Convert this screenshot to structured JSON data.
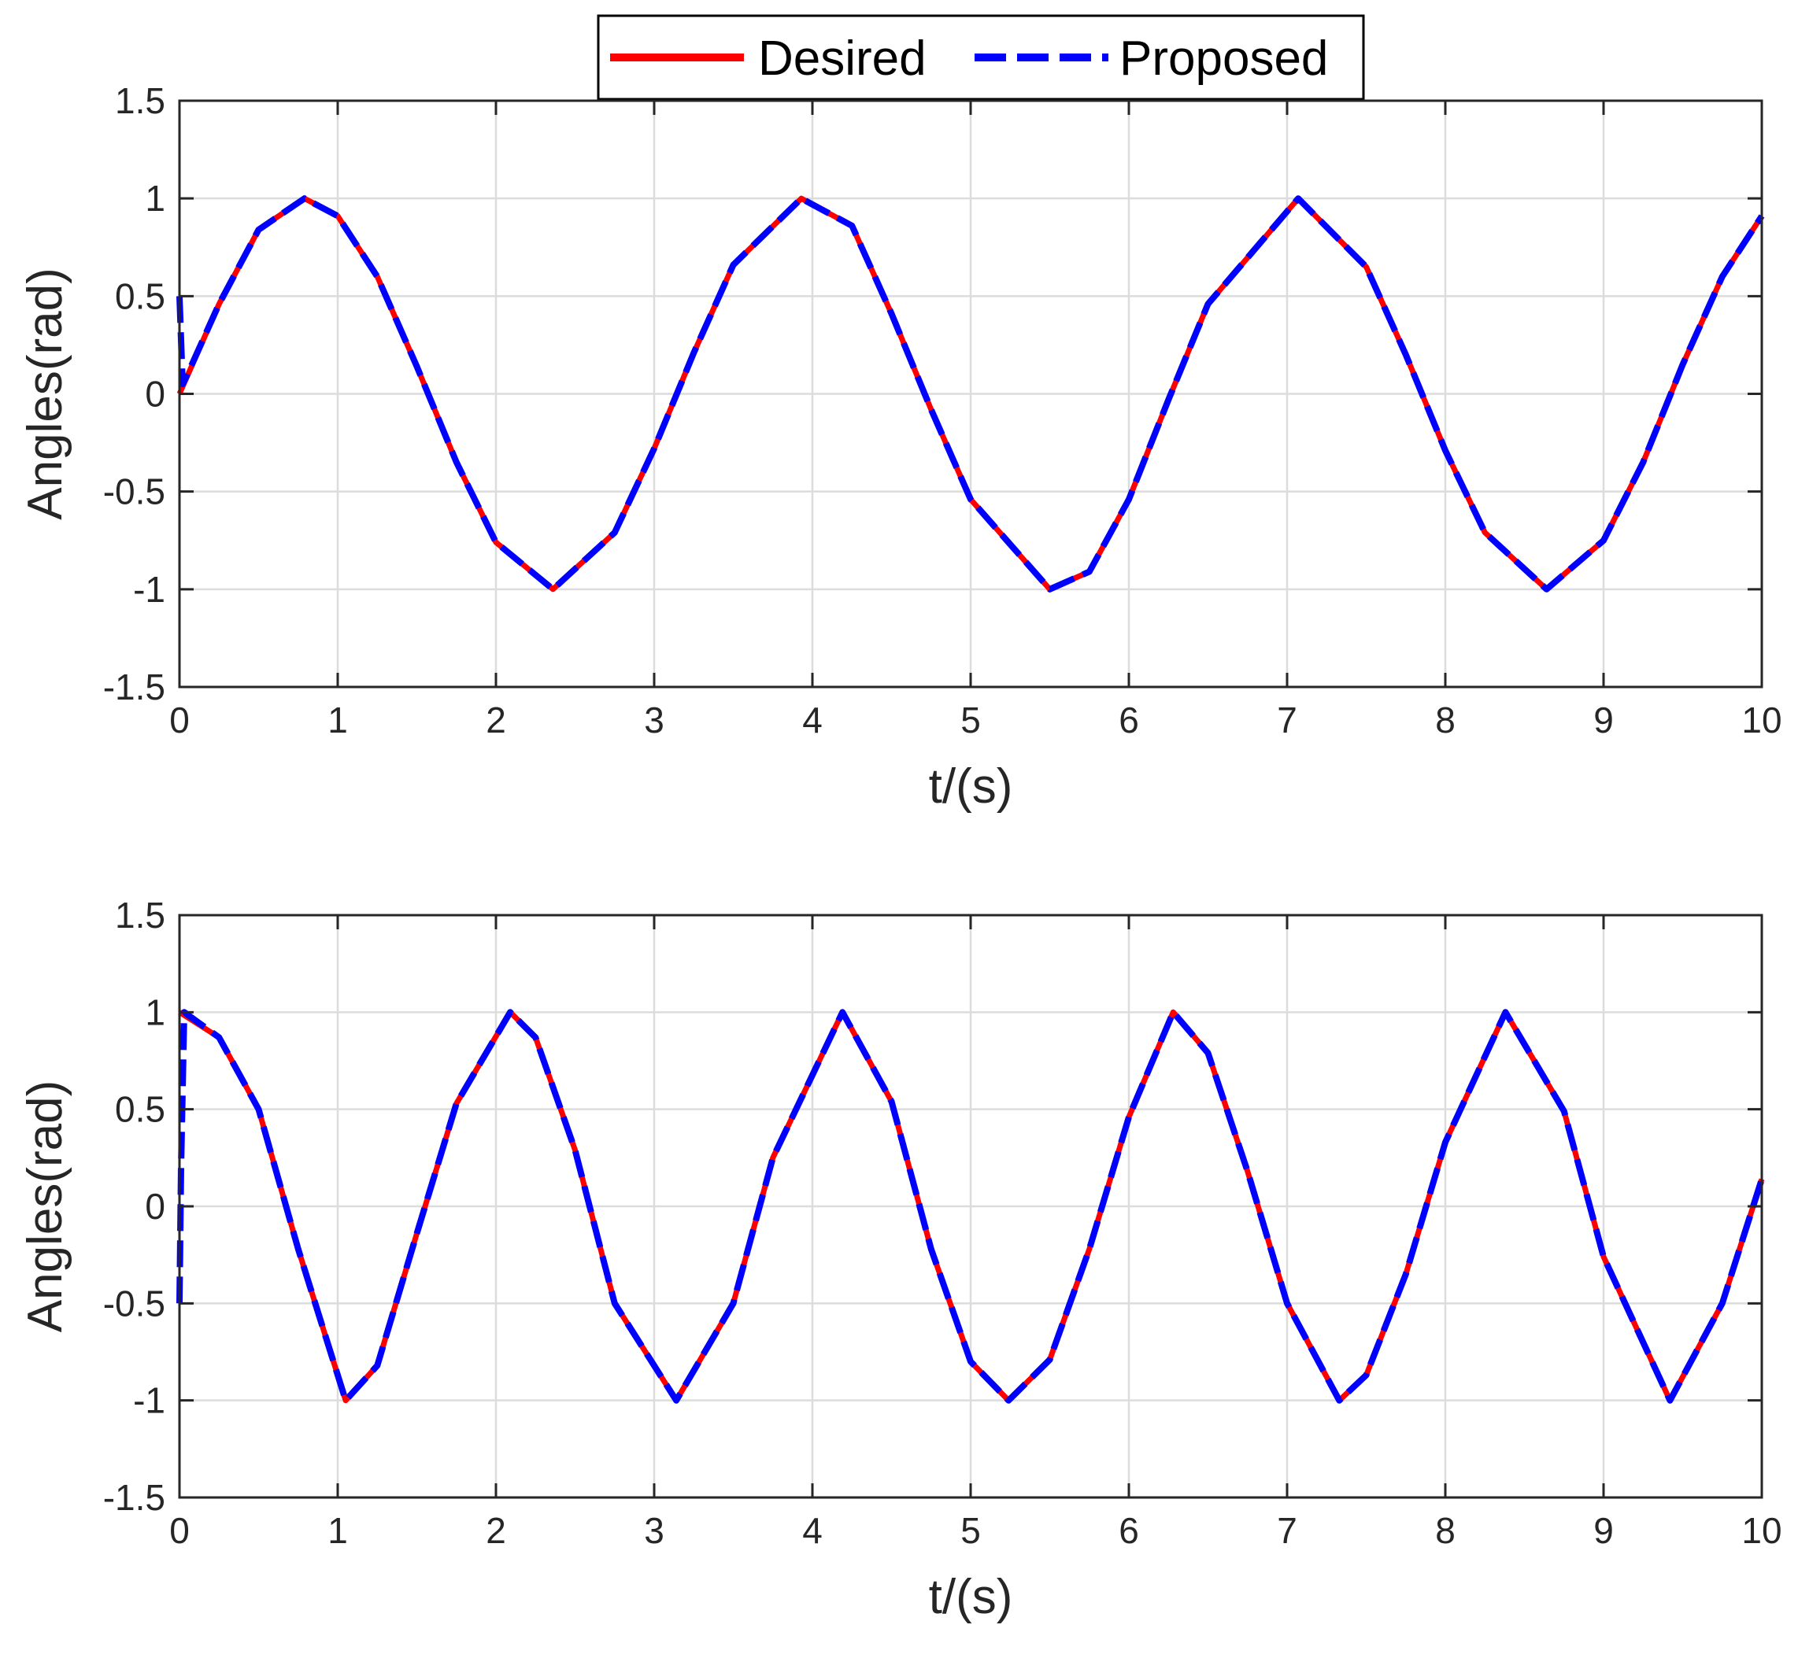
{
  "legend": {
    "entries": [
      {
        "label": "Desired",
        "color": "#ff0000",
        "style": "solid"
      },
      {
        "label": "Proposed",
        "color": "#0000ff",
        "style": "dashed"
      }
    ],
    "placement": "top-center, outside above top plot"
  },
  "chart_data": [
    {
      "type": "line",
      "xlabel": "t/(s)",
      "ylabel": "Angles(rad)",
      "xlim": [
        0,
        10
      ],
      "ylim": [
        -1.5,
        1.5
      ],
      "xticks": [
        "0",
        "1",
        "2",
        "3",
        "4",
        "5",
        "6",
        "7",
        "8",
        "9",
        "10"
      ],
      "yticks": [
        "1.5",
        "1",
        "0.5",
        "0",
        "-0.5",
        "-1",
        "-1.5"
      ],
      "grid": true,
      "series": [
        {
          "name": "Desired",
          "color": "#ff0000",
          "x": [
            0,
            0.25,
            0.5,
            0.79,
            1,
            1.25,
            1.5,
            1.75,
            2,
            2.36,
            2.75,
            3,
            3.25,
            3.5,
            3.93,
            4.25,
            4.5,
            4.75,
            5,
            5.5,
            5.75,
            6,
            6.25,
            6.5,
            7.07,
            7.5,
            7.75,
            8,
            8.25,
            8.64,
            9,
            9.25,
            9.5,
            9.75,
            10
          ],
          "y": [
            0,
            0.46,
            0.84,
            1.0,
            0.91,
            0.6,
            0.14,
            -0.35,
            -0.76,
            -1.0,
            -0.71,
            -0.28,
            0.21,
            0.66,
            1.0,
            0.86,
            0.41,
            -0.08,
            -0.54,
            -1.0,
            -0.91,
            -0.54,
            -0.03,
            0.46,
            1.0,
            0.65,
            0.2,
            -0.29,
            -0.71,
            -1.0,
            -0.75,
            -0.35,
            0.15,
            0.6,
            0.91
          ]
        },
        {
          "name": "Proposed",
          "color": "#0000ff",
          "x": [
            0,
            0.02,
            0.05,
            0.25,
            0.5,
            0.79,
            1,
            1.25,
            1.5,
            1.75,
            2,
            2.36,
            2.75,
            3,
            3.25,
            3.5,
            3.93,
            4.25,
            4.5,
            4.75,
            5,
            5.5,
            5.75,
            6,
            6.25,
            6.5,
            7.07,
            7.5,
            7.75,
            8,
            8.25,
            8.64,
            9,
            9.25,
            9.5,
            9.75,
            10
          ],
          "y": [
            0.5,
            0.05,
            0.1,
            0.46,
            0.84,
            1.0,
            0.91,
            0.6,
            0.14,
            -0.35,
            -0.76,
            -1.0,
            -0.71,
            -0.28,
            0.21,
            0.66,
            1.0,
            0.86,
            0.41,
            -0.08,
            -0.54,
            -1.0,
            -0.91,
            -0.54,
            -0.03,
            0.46,
            1.0,
            0.65,
            0.2,
            -0.29,
            -0.71,
            -1.0,
            -0.75,
            -0.35,
            0.15,
            0.6,
            0.91
          ]
        }
      ]
    },
    {
      "type": "line",
      "xlabel": "t/(s)",
      "ylabel": "Angles(rad)",
      "xlim": [
        0,
        10
      ],
      "ylim": [
        -1.5,
        1.5
      ],
      "xticks": [
        "0",
        "1",
        "2",
        "3",
        "4",
        "5",
        "6",
        "7",
        "8",
        "9",
        "10"
      ],
      "yticks": [
        "1.5",
        "1",
        "0.5",
        "0",
        "-0.5",
        "-1",
        "-1.5"
      ],
      "grid": true,
      "series": [
        {
          "name": "Desired",
          "color": "#ff0000",
          "x": [
            0,
            0.25,
            0.5,
            0.75,
            1.05,
            1.25,
            1.5,
            1.75,
            2.09,
            2.25,
            2.5,
            2.75,
            3.14,
            3.5,
            3.75,
            4.19,
            4.5,
            4.75,
            5.0,
            5.24,
            5.5,
            5.75,
            6.0,
            6.28,
            6.5,
            6.75,
            7.0,
            7.33,
            7.5,
            7.75,
            8.0,
            8.38,
            8.75,
            9.0,
            9.42,
            9.75,
            10
          ],
          "y": [
            1.0,
            0.87,
            0.5,
            -0.22,
            -1.0,
            -0.82,
            -0.14,
            0.53,
            1.0,
            0.87,
            0.29,
            -0.5,
            -1.0,
            -0.5,
            0.25,
            1.0,
            0.54,
            -0.22,
            -0.8,
            -1.0,
            -0.79,
            -0.22,
            0.46,
            1.0,
            0.79,
            0.18,
            -0.5,
            -1.0,
            -0.87,
            -0.35,
            0.33,
            1.0,
            0.49,
            -0.26,
            -1.0,
            -0.5,
            0.14
          ]
        },
        {
          "name": "Proposed",
          "color": "#0000ff",
          "x": [
            0,
            0.01,
            0.03,
            0.25,
            0.5,
            0.75,
            1.05,
            1.25,
            1.5,
            1.75,
            2.09,
            2.25,
            2.5,
            2.75,
            3.14,
            3.5,
            3.75,
            4.19,
            4.5,
            4.75,
            5.0,
            5.24,
            5.5,
            5.75,
            6.0,
            6.28,
            6.5,
            6.75,
            7.0,
            7.33,
            7.5,
            7.75,
            8.0,
            8.38,
            8.75,
            9.0,
            9.42,
            9.75,
            10
          ],
          "y": [
            -0.5,
            0.2,
            1.0,
            0.87,
            0.5,
            -0.22,
            -1.0,
            -0.82,
            -0.14,
            0.53,
            1.0,
            0.87,
            0.29,
            -0.5,
            -1.0,
            -0.5,
            0.25,
            1.0,
            0.54,
            -0.22,
            -0.8,
            -1.0,
            -0.79,
            -0.22,
            0.46,
            1.0,
            0.79,
            0.18,
            -0.5,
            -1.0,
            -0.87,
            -0.35,
            0.33,
            1.0,
            0.49,
            -0.26,
            -1.0,
            -0.5,
            0.14
          ]
        }
      ]
    }
  ]
}
